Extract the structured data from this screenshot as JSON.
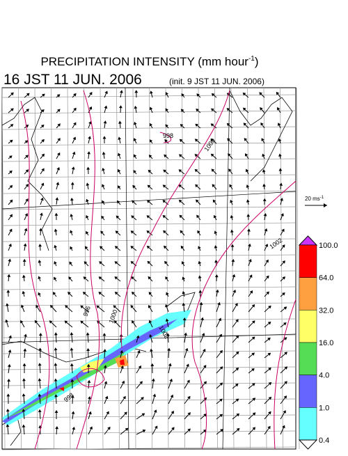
{
  "header": {
    "title": {
      "text": "PRECIPITATION INTENSITY (mm hour",
      "sup": "-1",
      "close": ")"
    },
    "valid_time": "16 JST 11 JUN. 2006",
    "init_time": "(init. 9 JST 11 JUN. 2006)"
  },
  "wind_scale": {
    "text": "20 ms",
    "sup": "-1"
  },
  "colorbar": {
    "labels": [
      "100.0",
      "64.0",
      "32.0",
      "16.0",
      "4.0",
      "1.0",
      "0.4"
    ],
    "colors": [
      "#ff0000",
      "#ffa040",
      "#ffff66",
      "#55dd55",
      "#6666ff",
      "#66ffff"
    ],
    "over_color": "#cc33ff",
    "under_color": "#ffffff"
  },
  "contour_labels": [
    "998",
    "1000",
    "1002",
    "998",
    "1000",
    "1002",
    "996"
  ]
}
